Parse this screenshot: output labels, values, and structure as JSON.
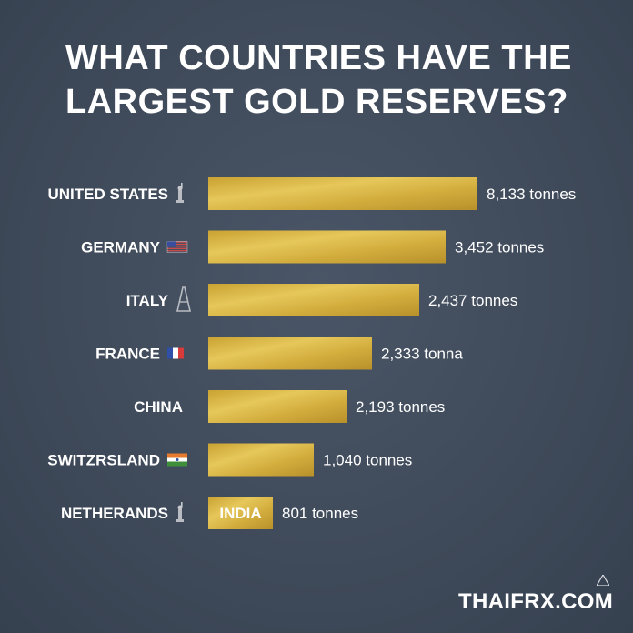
{
  "header": {
    "title_line1": "WHAT COUNTRIES HAVE THE",
    "title_line2": "LARGEST GOLD RESERVES?"
  },
  "watermark": "THAIFRX.COM",
  "colors": {
    "background": "#3f4a5a",
    "bar_gold": "#d4b03e",
    "text": "#ffffff"
  },
  "chart_data": {
    "type": "bar",
    "orientation": "horizontal",
    "title": "WHAT COUNTRIES HAVE THE LARGEST GOLD RESERVES?",
    "categories": [
      "UNITED STATES",
      "GERMANY",
      "ITALY",
      "FRANCE",
      "CHINA",
      "SWITZRSLAND",
      "NETHERANDS"
    ],
    "values": [
      8133,
      3452,
      2437,
      2333,
      2193,
      1040,
      801
    ],
    "value_labels": [
      "8,133 tonnes",
      "3,452 tonnes",
      "2,437 tonnes",
      "2,333 tonna",
      "2,193 tonnes",
      "1,040 tonnes",
      "801 tonnes"
    ],
    "bar_text": [
      "",
      "",
      "",
      "",
      "",
      "",
      "INDIA"
    ],
    "icons": [
      "statue-of-liberty-icon",
      "us-flag-icon",
      "eiffel-tower-icon",
      "france-flag-icon",
      "",
      "india-flag-icon",
      "monument-icon"
    ],
    "grid": false,
    "legend": "none"
  }
}
